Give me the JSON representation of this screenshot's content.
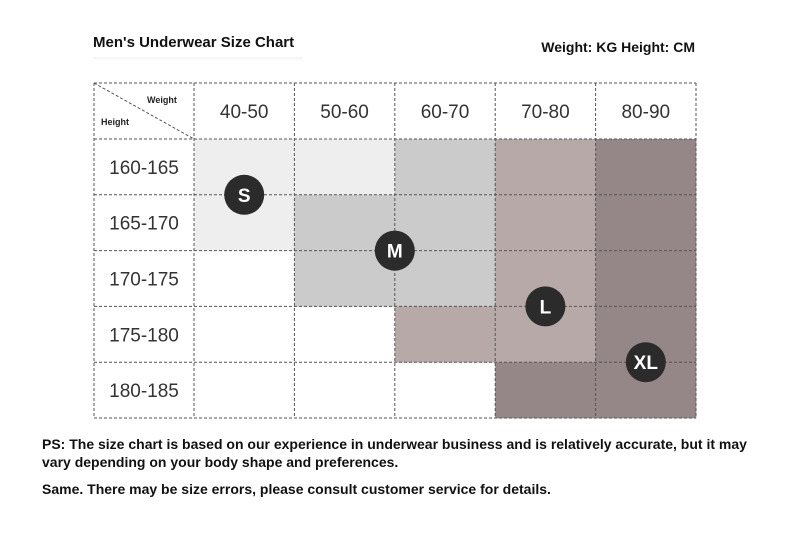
{
  "header": {
    "title": "Men's Underwear Size Chart",
    "units": "Weight: KG Height: CM"
  },
  "notes": {
    "line1": "PS: The size chart is based on our experience in underwear business and is relatively accurate, but it may vary depending on your body shape and preferences.",
    "line2": "Same. There may be size errors, please consult customer service for details."
  },
  "chart_data": {
    "type": "table",
    "corner": {
      "col_label": "Weight",
      "row_label": "Height"
    },
    "columns": [
      "40-50",
      "50-60",
      "60-70",
      "70-80",
      "80-90"
    ],
    "rows": [
      "160-165",
      "165-170",
      "170-175",
      "175-180",
      "180-185"
    ],
    "cells": [
      [
        "S",
        "S",
        "M",
        "L",
        "XL"
      ],
      [
        "S",
        "M",
        "M",
        "L",
        "XL"
      ],
      [
        "",
        "M",
        "M",
        "L",
        "XL"
      ],
      [
        "",
        "",
        "L",
        "L",
        "XL"
      ],
      [
        "",
        "",
        "",
        "XL",
        "XL"
      ]
    ],
    "sizes": [
      "S",
      "M",
      "L",
      "XL"
    ],
    "size_colors": {
      "S": "#eeeeee",
      "M": "#cbcbcb",
      "L": "#b8a9a9",
      "XL": "#958787"
    },
    "badges": [
      {
        "label": "S",
        "col": 0.5,
        "row": 1.0
      },
      {
        "label": "M",
        "col": 2.0,
        "row": 2.0
      },
      {
        "label": "L",
        "col": 3.5,
        "row": 3.0
      },
      {
        "label": "XL",
        "col": 4.5,
        "row": 4.0
      }
    ],
    "badge_color": "#2b2b2b"
  }
}
